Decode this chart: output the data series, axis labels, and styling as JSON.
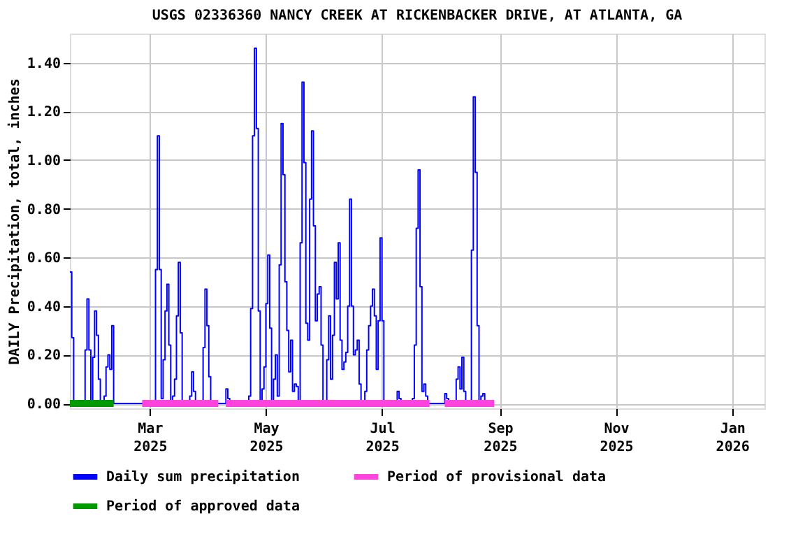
{
  "chart_data": {
    "type": "step",
    "title": "USGS 02336360 NANCY CREEK AT RICKENBACKER DRIVE, AT ATLANTA, GA",
    "ylabel": "DAILY Precipitation, total, inches",
    "xlim": [
      "2025-01-18",
      "2026-01-18"
    ],
    "xticks": [
      {
        "value": "2025-03-01",
        "label": "Mar 2025"
      },
      {
        "value": "2025-05-01",
        "label": "May 2025"
      },
      {
        "value": "2025-07-01",
        "label": "Jul 2025"
      },
      {
        "value": "2025-09-01",
        "label": "Sep 2025"
      },
      {
        "value": "2025-11-01",
        "label": "Nov 2025"
      },
      {
        "value": "2026-01-01",
        "label": "Jan 2026"
      }
    ],
    "ylim": [
      -0.02,
      1.52
    ],
    "yticks": [
      {
        "value": 0,
        "label": "0.00"
      },
      {
        "value": 0.2,
        "label": "0.20"
      },
      {
        "value": 0.4,
        "label": "0.40"
      },
      {
        "value": 0.6,
        "label": "0.60"
      },
      {
        "value": 0.8,
        "label": "0.80"
      },
      {
        "value": 1.0,
        "label": "1.00"
      },
      {
        "value": 1.2,
        "label": "1.20"
      },
      {
        "value": 1.4,
        "label": "1.40"
      }
    ],
    "grid": true,
    "legend": "bottom",
    "series": [
      {
        "name": "Daily sum precipitation",
        "color": "#0000ff",
        "x": [
          "2025-01-18",
          "2025-01-19",
          "2025-01-20",
          "2025-01-25",
          "2025-01-26",
          "2025-01-27",
          "2025-01-28",
          "2025-01-29",
          "2025-01-30",
          "2025-01-31",
          "2025-02-01",
          "2025-02-02",
          "2025-02-03",
          "2025-02-04",
          "2025-02-05",
          "2025-02-06",
          "2025-02-07",
          "2025-02-08",
          "2025-02-09",
          "2025-02-10",
          "2025-03-03",
          "2025-03-04",
          "2025-03-05",
          "2025-03-06",
          "2025-03-07",
          "2025-03-08",
          "2025-03-09",
          "2025-03-10",
          "2025-03-11",
          "2025-03-12",
          "2025-03-13",
          "2025-03-14",
          "2025-03-15",
          "2025-03-16",
          "2025-03-17",
          "2025-03-18",
          "2025-03-21",
          "2025-03-22",
          "2025-03-23",
          "2025-03-24",
          "2025-03-25",
          "2025-03-28",
          "2025-03-29",
          "2025-03-30",
          "2025-03-31",
          "2025-04-01",
          "2025-04-02",
          "2025-04-09",
          "2025-04-10",
          "2025-04-11",
          "2025-04-12",
          "2025-04-21",
          "2025-04-22",
          "2025-04-23",
          "2025-04-24",
          "2025-04-25",
          "2025-04-26",
          "2025-04-27",
          "2025-04-28",
          "2025-04-29",
          "2025-04-30",
          "2025-05-01",
          "2025-05-02",
          "2025-05-03",
          "2025-05-04",
          "2025-05-05",
          "2025-05-06",
          "2025-05-07",
          "2025-05-08",
          "2025-05-09",
          "2025-05-10",
          "2025-05-11",
          "2025-05-12",
          "2025-05-13",
          "2025-05-14",
          "2025-05-15",
          "2025-05-16",
          "2025-05-17",
          "2025-05-18",
          "2025-05-19",
          "2025-05-20",
          "2025-05-21",
          "2025-05-22",
          "2025-05-23",
          "2025-05-24",
          "2025-05-25",
          "2025-05-26",
          "2025-05-27",
          "2025-05-28",
          "2025-05-29",
          "2025-05-30",
          "2025-05-31",
          "2025-06-01",
          "2025-06-02",
          "2025-06-03",
          "2025-06-04",
          "2025-06-05",
          "2025-06-06",
          "2025-06-07",
          "2025-06-08",
          "2025-06-09",
          "2025-06-10",
          "2025-06-11",
          "2025-06-12",
          "2025-06-13",
          "2025-06-14",
          "2025-06-15",
          "2025-06-16",
          "2025-06-17",
          "2025-06-18",
          "2025-06-19",
          "2025-06-20",
          "2025-06-21",
          "2025-06-22",
          "2025-06-23",
          "2025-06-24",
          "2025-06-25",
          "2025-06-26",
          "2025-06-27",
          "2025-06-28",
          "2025-06-29",
          "2025-06-30",
          "2025-07-01",
          "2025-07-02",
          "2025-07-08",
          "2025-07-09",
          "2025-07-10",
          "2025-07-11",
          "2025-07-16",
          "2025-07-17",
          "2025-07-18",
          "2025-07-19",
          "2025-07-20",
          "2025-07-21",
          "2025-07-22",
          "2025-07-23",
          "2025-07-24",
          "2025-07-25",
          "2025-08-02",
          "2025-08-03",
          "2025-08-04",
          "2025-08-05",
          "2025-08-08",
          "2025-08-09",
          "2025-08-10",
          "2025-08-11",
          "2025-08-12",
          "2025-08-13",
          "2025-08-14",
          "2025-08-16",
          "2025-08-17",
          "2025-08-18",
          "2025-08-19",
          "2025-08-20",
          "2025-08-21",
          "2025-08-22",
          "2025-08-23",
          "2025-08-24"
        ],
        "values": [
          0.54,
          0.27,
          0,
          0,
          0.22,
          0.43,
          0.22,
          0,
          0.19,
          0.38,
          0.28,
          0.1,
          0,
          0,
          0.03,
          0.15,
          0.2,
          0.14,
          0.32,
          0,
          0,
          0.55,
          1.1,
          0.55,
          0.02,
          0.18,
          0.38,
          0.49,
          0.24,
          0,
          0.03,
          0.1,
          0.36,
          0.58,
          0.29,
          0,
          0,
          0.03,
          0.13,
          0.05,
          0,
          0,
          0.23,
          0.47,
          0.32,
          0.11,
          0,
          0,
          0.06,
          0.02,
          0,
          0,
          0.03,
          0.39,
          1.1,
          1.46,
          1.13,
          0.38,
          0,
          0.06,
          0.15,
          0.41,
          0.61,
          0.31,
          0,
          0.1,
          0.2,
          0.03,
          0.57,
          1.15,
          0.94,
          0.5,
          0.3,
          0.13,
          0.26,
          0.05,
          0.08,
          0.07,
          0,
          0.66,
          1.32,
          0.99,
          0.33,
          0.26,
          0.84,
          1.12,
          0.73,
          0.34,
          0.45,
          0.48,
          0.24,
          0,
          0,
          0.18,
          0.36,
          0.1,
          0.28,
          0.58,
          0.43,
          0.66,
          0.26,
          0.14,
          0.17,
          0.21,
          0.4,
          0.84,
          0.4,
          0.2,
          0.22,
          0.26,
          0.08,
          0,
          0,
          0.05,
          0.22,
          0.32,
          0.4,
          0.47,
          0.36,
          0.14,
          0.34,
          0.68,
          0.34,
          0,
          0,
          0.05,
          0.02,
          0,
          0,
          0.02,
          0.24,
          0.72,
          0.96,
          0.48,
          0.05,
          0.08,
          0.03,
          0,
          0,
          0.04,
          0.02,
          0,
          0,
          0.1,
          0.15,
          0.06,
          0.19,
          0.05,
          0,
          0,
          0.63,
          1.26,
          0.95,
          0.32,
          0,
          0.03,
          0.04,
          0
        ]
      },
      {
        "name": "Period of provisional data",
        "color": "#ff44dd",
        "type": "line",
        "x": [
          "2025-02-25",
          "2025-04-06",
          "2025-04-08",
          "2025-04-10",
          "2025-07-26",
          "2025-07-30",
          "2025-08-03",
          "2025-08-29"
        ],
        "values": [
          0,
          0,
          null,
          0,
          0,
          null,
          0,
          0
        ]
      },
      {
        "name": "Period of approved data",
        "color": "#009900",
        "type": "line",
        "x": [
          "2025-01-18",
          "2025-02-10"
        ],
        "values": [
          0,
          0
        ]
      }
    ]
  }
}
